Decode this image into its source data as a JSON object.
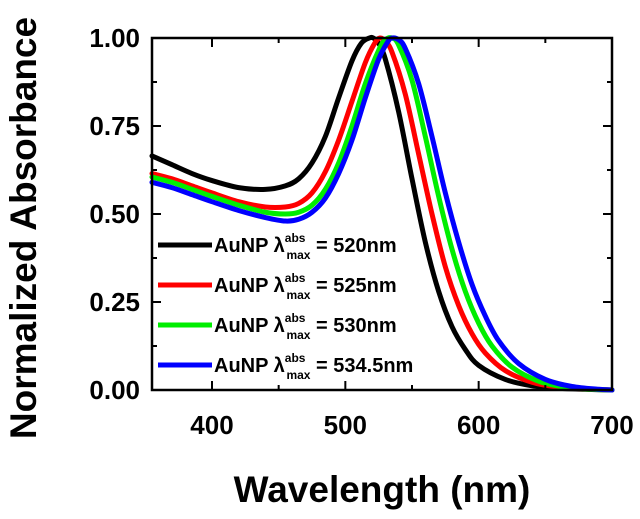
{
  "chart_data": {
    "type": "line",
    "title": "",
    "xlabel": "Wavelength (nm)",
    "ylabel": "Normalized Absorbance",
    "xlim": [
      355,
      700
    ],
    "ylim": [
      0.0,
      1.0
    ],
    "x_ticks": [
      400,
      500,
      600,
      700
    ],
    "x_tick_labels": [
      "400",
      "500",
      "600",
      "700"
    ],
    "y_ticks": [
      0.0,
      0.25,
      0.5,
      0.75,
      1.0
    ],
    "y_tick_labels": [
      "0.00",
      "0.25",
      "0.50",
      "0.75",
      "1.00"
    ],
    "grid": false,
    "legend_position": "bottom-left",
    "series": [
      {
        "name": "AuNP λ max abs = 520nm",
        "legend": {
          "prefix": "AuNP λ",
          "sup": "abs",
          "sub": "max",
          "suffix": " = 520nm"
        },
        "color": "#000000",
        "x": [
          355,
          370,
          385,
          400,
          420,
          440,
          455,
          465,
          475,
          485,
          495,
          505,
          512,
          518,
          521,
          525,
          530,
          540,
          550,
          560,
          570,
          580,
          590,
          600,
          620,
          640,
          660,
          680,
          700
        ],
        "y": [
          0.665,
          0.64,
          0.615,
          0.595,
          0.575,
          0.57,
          0.58,
          0.6,
          0.645,
          0.72,
          0.83,
          0.935,
          0.985,
          1.0,
          1.0,
          0.985,
          0.94,
          0.79,
          0.6,
          0.42,
          0.28,
          0.18,
          0.115,
          0.07,
          0.03,
          0.012,
          0.005,
          0.002,
          0.0
        ]
      },
      {
        "name": "AuNP λ max abs = 525nm",
        "legend": {
          "prefix": "AuNP λ",
          "sup": "abs",
          "sub": "max",
          "suffix": " = 525nm"
        },
        "color": "#ff0000",
        "x": [
          355,
          370,
          385,
          400,
          420,
          440,
          455,
          465,
          475,
          485,
          495,
          505,
          515,
          522,
          526,
          530,
          535,
          545,
          555,
          565,
          575,
          585,
          595,
          605,
          620,
          640,
          660,
          680,
          700
        ],
        "y": [
          0.615,
          0.6,
          0.58,
          0.56,
          0.535,
          0.52,
          0.52,
          0.53,
          0.56,
          0.62,
          0.71,
          0.82,
          0.93,
          0.985,
          1.0,
          0.99,
          0.96,
          0.84,
          0.67,
          0.5,
          0.35,
          0.24,
          0.16,
          0.105,
          0.055,
          0.022,
          0.008,
          0.003,
          0.0
        ]
      },
      {
        "name": "AuNP λ max abs = 530nm",
        "legend": {
          "prefix": "AuNP λ",
          "sup": "abs",
          "sub": "max",
          "suffix": " = 530nm"
        },
        "color": "#00ee00",
        "x": [
          355,
          370,
          385,
          400,
          420,
          440,
          455,
          465,
          475,
          485,
          495,
          505,
          515,
          525,
          530,
          535,
          540,
          550,
          560,
          570,
          580,
          590,
          600,
          610,
          625,
          645,
          665,
          685,
          700
        ],
        "y": [
          0.605,
          0.59,
          0.57,
          0.55,
          0.525,
          0.505,
          0.5,
          0.505,
          0.525,
          0.57,
          0.645,
          0.75,
          0.87,
          0.965,
          0.995,
          1.0,
          0.98,
          0.88,
          0.72,
          0.55,
          0.4,
          0.28,
          0.19,
          0.125,
          0.065,
          0.025,
          0.008,
          0.002,
          0.0
        ]
      },
      {
        "name": "AuNP λ max abs = 534.5nm",
        "legend": {
          "prefix": "AuNP λ",
          "sup": "abs",
          "sub": "max",
          "suffix": " = 534.5nm"
        },
        "color": "#0000ff",
        "x": [
          355,
          370,
          385,
          400,
          420,
          440,
          455,
          465,
          475,
          485,
          495,
          505,
          515,
          525,
          532,
          535,
          540,
          545,
          555,
          565,
          575,
          585,
          595,
          605,
          615,
          630,
          650,
          670,
          690,
          700
        ],
        "y": [
          0.59,
          0.575,
          0.555,
          0.535,
          0.51,
          0.49,
          0.48,
          0.485,
          0.505,
          0.545,
          0.615,
          0.71,
          0.83,
          0.94,
          0.99,
          1.0,
          0.995,
          0.97,
          0.87,
          0.72,
          0.56,
          0.42,
          0.3,
          0.21,
          0.14,
          0.075,
          0.03,
          0.01,
          0.002,
          0.0
        ]
      }
    ]
  }
}
